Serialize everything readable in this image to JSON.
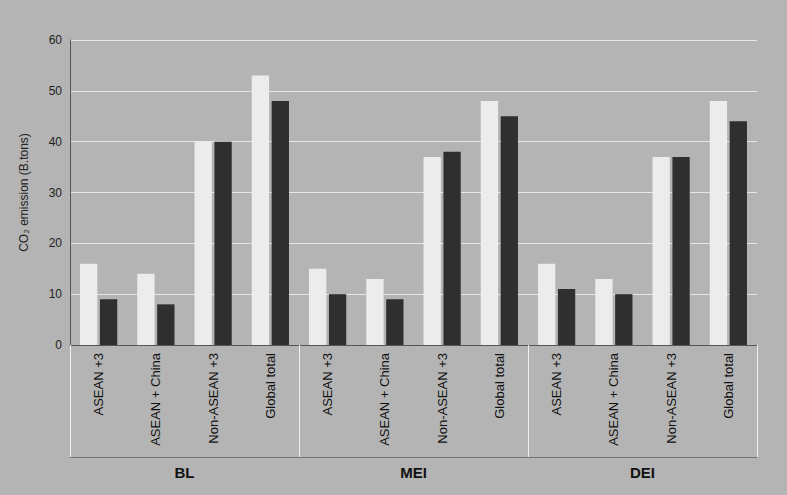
{
  "chart_data": {
    "type": "bar",
    "y_label": "CO₂ emission (B.tons)",
    "groups": [
      "BL",
      "MEI",
      "DEI"
    ],
    "categories": [
      "ASEAN +3",
      "ASEAN + China",
      "Non-ASEAN +3",
      "Global total",
      "ASEAN +3",
      "ASEAN + China",
      "Non-ASEAN +3",
      "Global total",
      "ASEAN +3",
      "ASEAN + China",
      "Non-ASEAN +3",
      "Global total"
    ],
    "series": [
      {
        "color": "#ececec",
        "values": [
          16,
          14,
          40,
          53,
          15,
          13,
          37,
          48,
          16,
          13,
          37,
          48
        ]
      },
      {
        "color": "#2f2f2f",
        "values": [
          9,
          8,
          40,
          48,
          10,
          9,
          38,
          45,
          11,
          10,
          37,
          44
        ]
      }
    ],
    "ylim": [
      0,
      60
    ],
    "yticks": [
      0,
      10,
      20,
      30,
      40,
      50,
      60
    ],
    "grid": true
  }
}
